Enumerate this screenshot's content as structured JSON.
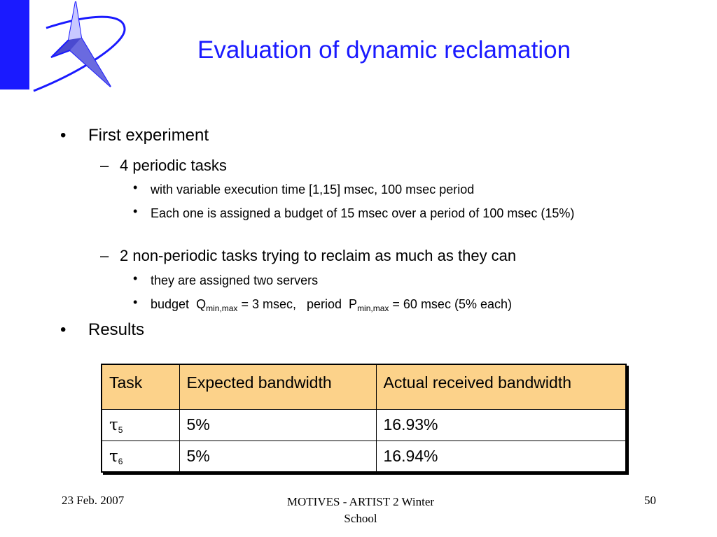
{
  "slide": {
    "title": "Evaluation of dynamic reclamation",
    "bullets": {
      "first_experiment": "First experiment",
      "periodic_tasks": "4 periodic tasks",
      "variable_exec": "with variable execution time [1,15] msec, 100 msec period",
      "budget_each": "Each one is assigned a budget of 15 msec over a period of 100 msec (15%)",
      "non_periodic": "2 non-periodic tasks trying to reclaim as much as they can",
      "servers": "they are assigned two servers",
      "budget_word": "budget",
      "q_symbol": "Q",
      "q_sub": "min,max",
      "q_value": " = 3 msec,",
      "period_word": "period",
      "p_symbol": "P",
      "p_sub": "min,max",
      "p_value": " = 60 msec (5% each)",
      "results": "Results"
    },
    "bullet_chars": {
      "level1": "•",
      "level2": "–",
      "level3": "•"
    },
    "table": {
      "header_color": "#fcd28a",
      "headers": [
        "Task",
        "Expected bandwidth",
        "Actual received bandwidth"
      ],
      "rows": [
        {
          "task_symbol": "τ",
          "task_sub": "5",
          "expected": "5%",
          "actual": "16.93%"
        },
        {
          "task_symbol": "τ",
          "task_sub": "6",
          "expected": "5%",
          "actual": "16.94%"
        }
      ]
    },
    "footer": {
      "date": "23 Feb. 2007",
      "center": "MOTIVES - ARTIST 2 Winter School",
      "page": "50"
    },
    "accent_color": "#1a1aff"
  }
}
